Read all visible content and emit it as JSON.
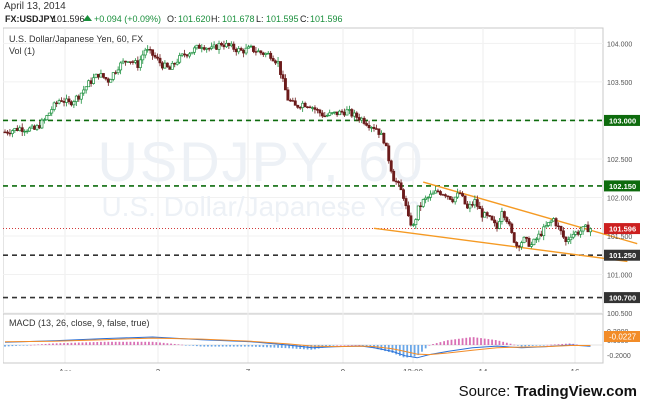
{
  "header": {
    "date": "April 13, 2014",
    "symbol": "FX:USDJPY",
    "last": "101.596",
    "change": "+0.094 (+0.09%)",
    "o_label": "O:",
    "o_value": "101.620",
    "h_label": "H:",
    "h_value": "101.678",
    "l_label": "L:",
    "l_value": "101.595",
    "c_label": "C:",
    "c_value": "101.596",
    "arrow_icon": "triangle-up-icon"
  },
  "legend": {
    "title": "U.S. Dollar/Japanese Yen, 60, FX",
    "vol": "Vol (1)"
  },
  "watermark": {
    "line1": "USDJPY, 60",
    "line2": "U.S. Dollar/Japanese Yen"
  },
  "macd": {
    "label": "MACD (13, 26, close, 9, false, true)",
    "value": "-0.0227",
    "axis_ticks": [
      "0.2000",
      "0.0000",
      "-0.2000"
    ]
  },
  "source": {
    "prefix": "Source: ",
    "brand": "TradingView.com"
  },
  "colors": {
    "up_candle": "#1a8f3c",
    "down_candle": "#6b1b1b",
    "level_line": "#0d6b0d",
    "level_dark": "#333333",
    "trendline": "#f59a23",
    "price_line": "#cc1f1f",
    "macd_line": "#2a6fd6",
    "signal_line": "#f28c28",
    "hist_pos": "#d970b5",
    "hist_neg": "#6aa7e8"
  },
  "chart_data": {
    "type": "candlestick",
    "title": "U.S. Dollar/Japanese Yen, 60, FX",
    "x_ticks": [
      "Apr",
      "3",
      "7",
      "9",
      "12:00",
      "14",
      "16"
    ],
    "y_ticks": [
      104.0,
      103.5,
      103.0,
      102.5,
      102.0,
      101.5,
      101.0,
      100.5
    ],
    "y_tick_labels": [
      "104.000",
      "103.500",
      "103.000",
      "102.500",
      "102.000",
      "101.500",
      "101.000",
      "100.500"
    ],
    "ylim": [
      100.5,
      104.2
    ],
    "levels": [
      {
        "value": 103.0,
        "label": "103.000",
        "color": "#0d6b0d"
      },
      {
        "value": 102.15,
        "label": "102.150",
        "color": "#0d6b0d"
      },
      {
        "value": 101.25,
        "label": "101.250",
        "color": "#333333"
      },
      {
        "value": 100.7,
        "label": "100.700",
        "color": "#333333"
      }
    ],
    "current_price": {
      "value": 101.596,
      "label": "101.596"
    },
    "price_path": [
      [
        0,
        102.85
      ],
      [
        12,
        102.9
      ],
      [
        24,
        102.88
      ],
      [
        32,
        103.0
      ],
      [
        38,
        103.15
      ],
      [
        45,
        103.28
      ],
      [
        52,
        103.22
      ],
      [
        60,
        103.32
      ],
      [
        68,
        103.48
      ],
      [
        76,
        103.6
      ],
      [
        84,
        103.52
      ],
      [
        92,
        103.7
      ],
      [
        100,
        103.8
      ],
      [
        108,
        103.72
      ],
      [
        114,
        103.92
      ],
      [
        120,
        103.85
      ],
      [
        128,
        103.72
      ],
      [
        134,
        103.66
      ],
      [
        140,
        103.78
      ],
      [
        146,
        103.86
      ],
      [
        152,
        103.9
      ],
      [
        160,
        103.98
      ],
      [
        168,
        103.92
      ],
      [
        176,
        104.0
      ],
      [
        184,
        103.95
      ],
      [
        192,
        103.9
      ],
      [
        200,
        103.93
      ],
      [
        208,
        103.88
      ],
      [
        216,
        103.85
      ],
      [
        222,
        103.75
      ],
      [
        226,
        103.5
      ],
      [
        230,
        103.28
      ],
      [
        236,
        103.18
      ],
      [
        242,
        103.22
      ],
      [
        248,
        103.2
      ],
      [
        254,
        103.12
      ],
      [
        260,
        103.06
      ],
      [
        266,
        103.08
      ],
      [
        272,
        103.1
      ],
      [
        278,
        103.12
      ],
      [
        284,
        103.06
      ],
      [
        290,
        103.02
      ],
      [
        296,
        102.95
      ],
      [
        302,
        102.9
      ],
      [
        308,
        102.75
      ],
      [
        312,
        102.5
      ],
      [
        316,
        102.25
      ],
      [
        320,
        102.15
      ],
      [
        324,
        102.02
      ],
      [
        328,
        101.72
      ],
      [
        332,
        101.62
      ],
      [
        336,
        101.85
      ],
      [
        340,
        101.95
      ],
      [
        346,
        102.02
      ],
      [
        352,
        102.08
      ],
      [
        358,
        102.05
      ],
      [
        364,
        101.98
      ],
      [
        370,
        102.05
      ],
      [
        376,
        101.85
      ],
      [
        382,
        101.95
      ],
      [
        388,
        101.78
      ],
      [
        394,
        101.72
      ],
      [
        400,
        101.6
      ],
      [
        404,
        101.85
      ],
      [
        408,
        101.72
      ],
      [
        412,
        101.52
      ],
      [
        416,
        101.38
      ],
      [
        422,
        101.45
      ],
      [
        428,
        101.38
      ],
      [
        434,
        101.5
      ],
      [
        440,
        101.62
      ],
      [
        446,
        101.72
      ],
      [
        452,
        101.55
      ],
      [
        456,
        101.42
      ],
      [
        460,
        101.52
      ],
      [
        466,
        101.55
      ],
      [
        472,
        101.6
      ],
      [
        476,
        101.596
      ]
    ],
    "trendlines": [
      {
        "from": [
          340,
          102.2
        ],
        "to": [
          514,
          101.4
        ]
      },
      {
        "from": [
          300,
          101.6
        ],
        "to": [
          506,
          101.17
        ]
      }
    ],
    "macd": {
      "series": [
        {
          "values": [
            [
              0,
              0.05
            ],
            [
              40,
              0.08
            ],
            [
              80,
              0.12
            ],
            [
              120,
              0.15
            ],
            [
              160,
              0.1
            ],
            [
              200,
              0.06
            ],
            [
              230,
              0.0
            ],
            [
              250,
              -0.05
            ],
            [
              270,
              -0.03
            ],
            [
              290,
              -0.02
            ],
            [
              300,
              -0.05
            ],
            [
              315,
              -0.12
            ],
            [
              325,
              -0.2
            ],
            [
              335,
              -0.24
            ],
            [
              345,
              -0.18
            ],
            [
              360,
              -0.12
            ],
            [
              380,
              -0.05
            ],
            [
              400,
              -0.02
            ],
            [
              420,
              -0.05
            ],
            [
              440,
              -0.03
            ],
            [
              460,
              0.0
            ],
            [
              476,
              -0.0227
            ]
          ]
        },
        {
          "values": [
            [
              0,
              0.06
            ],
            [
              40,
              0.07
            ],
            [
              80,
              0.1
            ],
            [
              120,
              0.13
            ],
            [
              160,
              0.11
            ],
            [
              200,
              0.07
            ],
            [
              230,
              0.02
            ],
            [
              250,
              -0.02
            ],
            [
              270,
              -0.03
            ],
            [
              290,
              -0.02
            ],
            [
              300,
              -0.03
            ],
            [
              315,
              -0.07
            ],
            [
              325,
              -0.12
            ],
            [
              335,
              -0.17
            ],
            [
              345,
              -0.18
            ],
            [
              360,
              -0.15
            ],
            [
              380,
              -0.1
            ],
            [
              400,
              -0.05
            ],
            [
              420,
              -0.04
            ],
            [
              440,
              -0.03
            ],
            [
              460,
              -0.01
            ],
            [
              476,
              -0.01
            ]
          ]
        }
      ],
      "ylim": [
        -0.3,
        0.3
      ]
    }
  }
}
